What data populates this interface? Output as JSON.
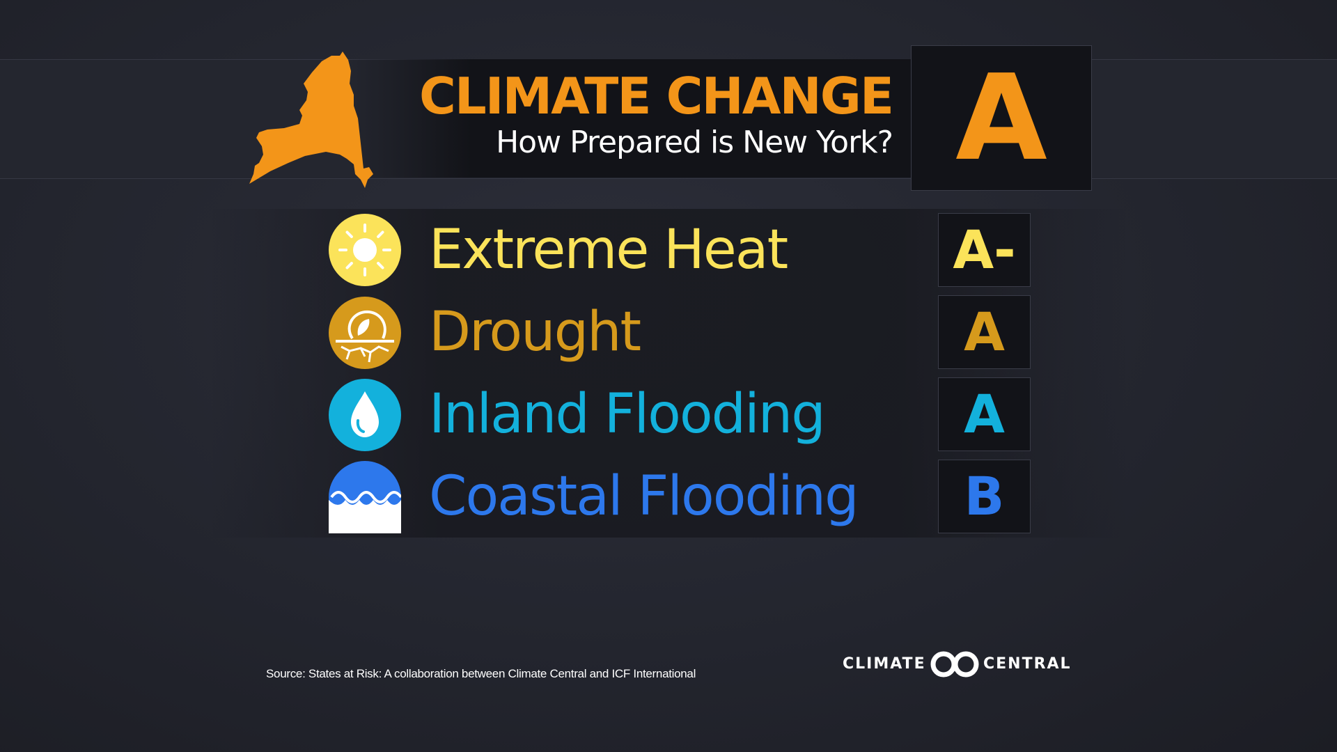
{
  "header": {
    "title": "CLIMATE CHANGE",
    "subtitle": "How Prepared is New York?",
    "overall_grade": "A"
  },
  "categories": [
    {
      "label": "Extreme Heat",
      "grade": "A-",
      "color": "#fbe35a",
      "icon": "sun-icon"
    },
    {
      "label": "Drought",
      "grade": "A",
      "color": "#d69a1c",
      "icon": "drought-icon"
    },
    {
      "label": "Inland Flooding",
      "grade": "A",
      "color": "#13b1dc",
      "icon": "water-drop-icon"
    },
    {
      "label": "Coastal Flooding",
      "grade": "B",
      "color": "#2d78ec",
      "icon": "waves-icon"
    }
  ],
  "footer": {
    "source": "Source: States at Risk: A collaboration between Climate Central and ICF International",
    "logo_left": "CLIMATE",
    "logo_right": "CENTRAL"
  },
  "colors": {
    "accent": "#f39519",
    "background": "#23252e",
    "grade_box": "#121318"
  }
}
